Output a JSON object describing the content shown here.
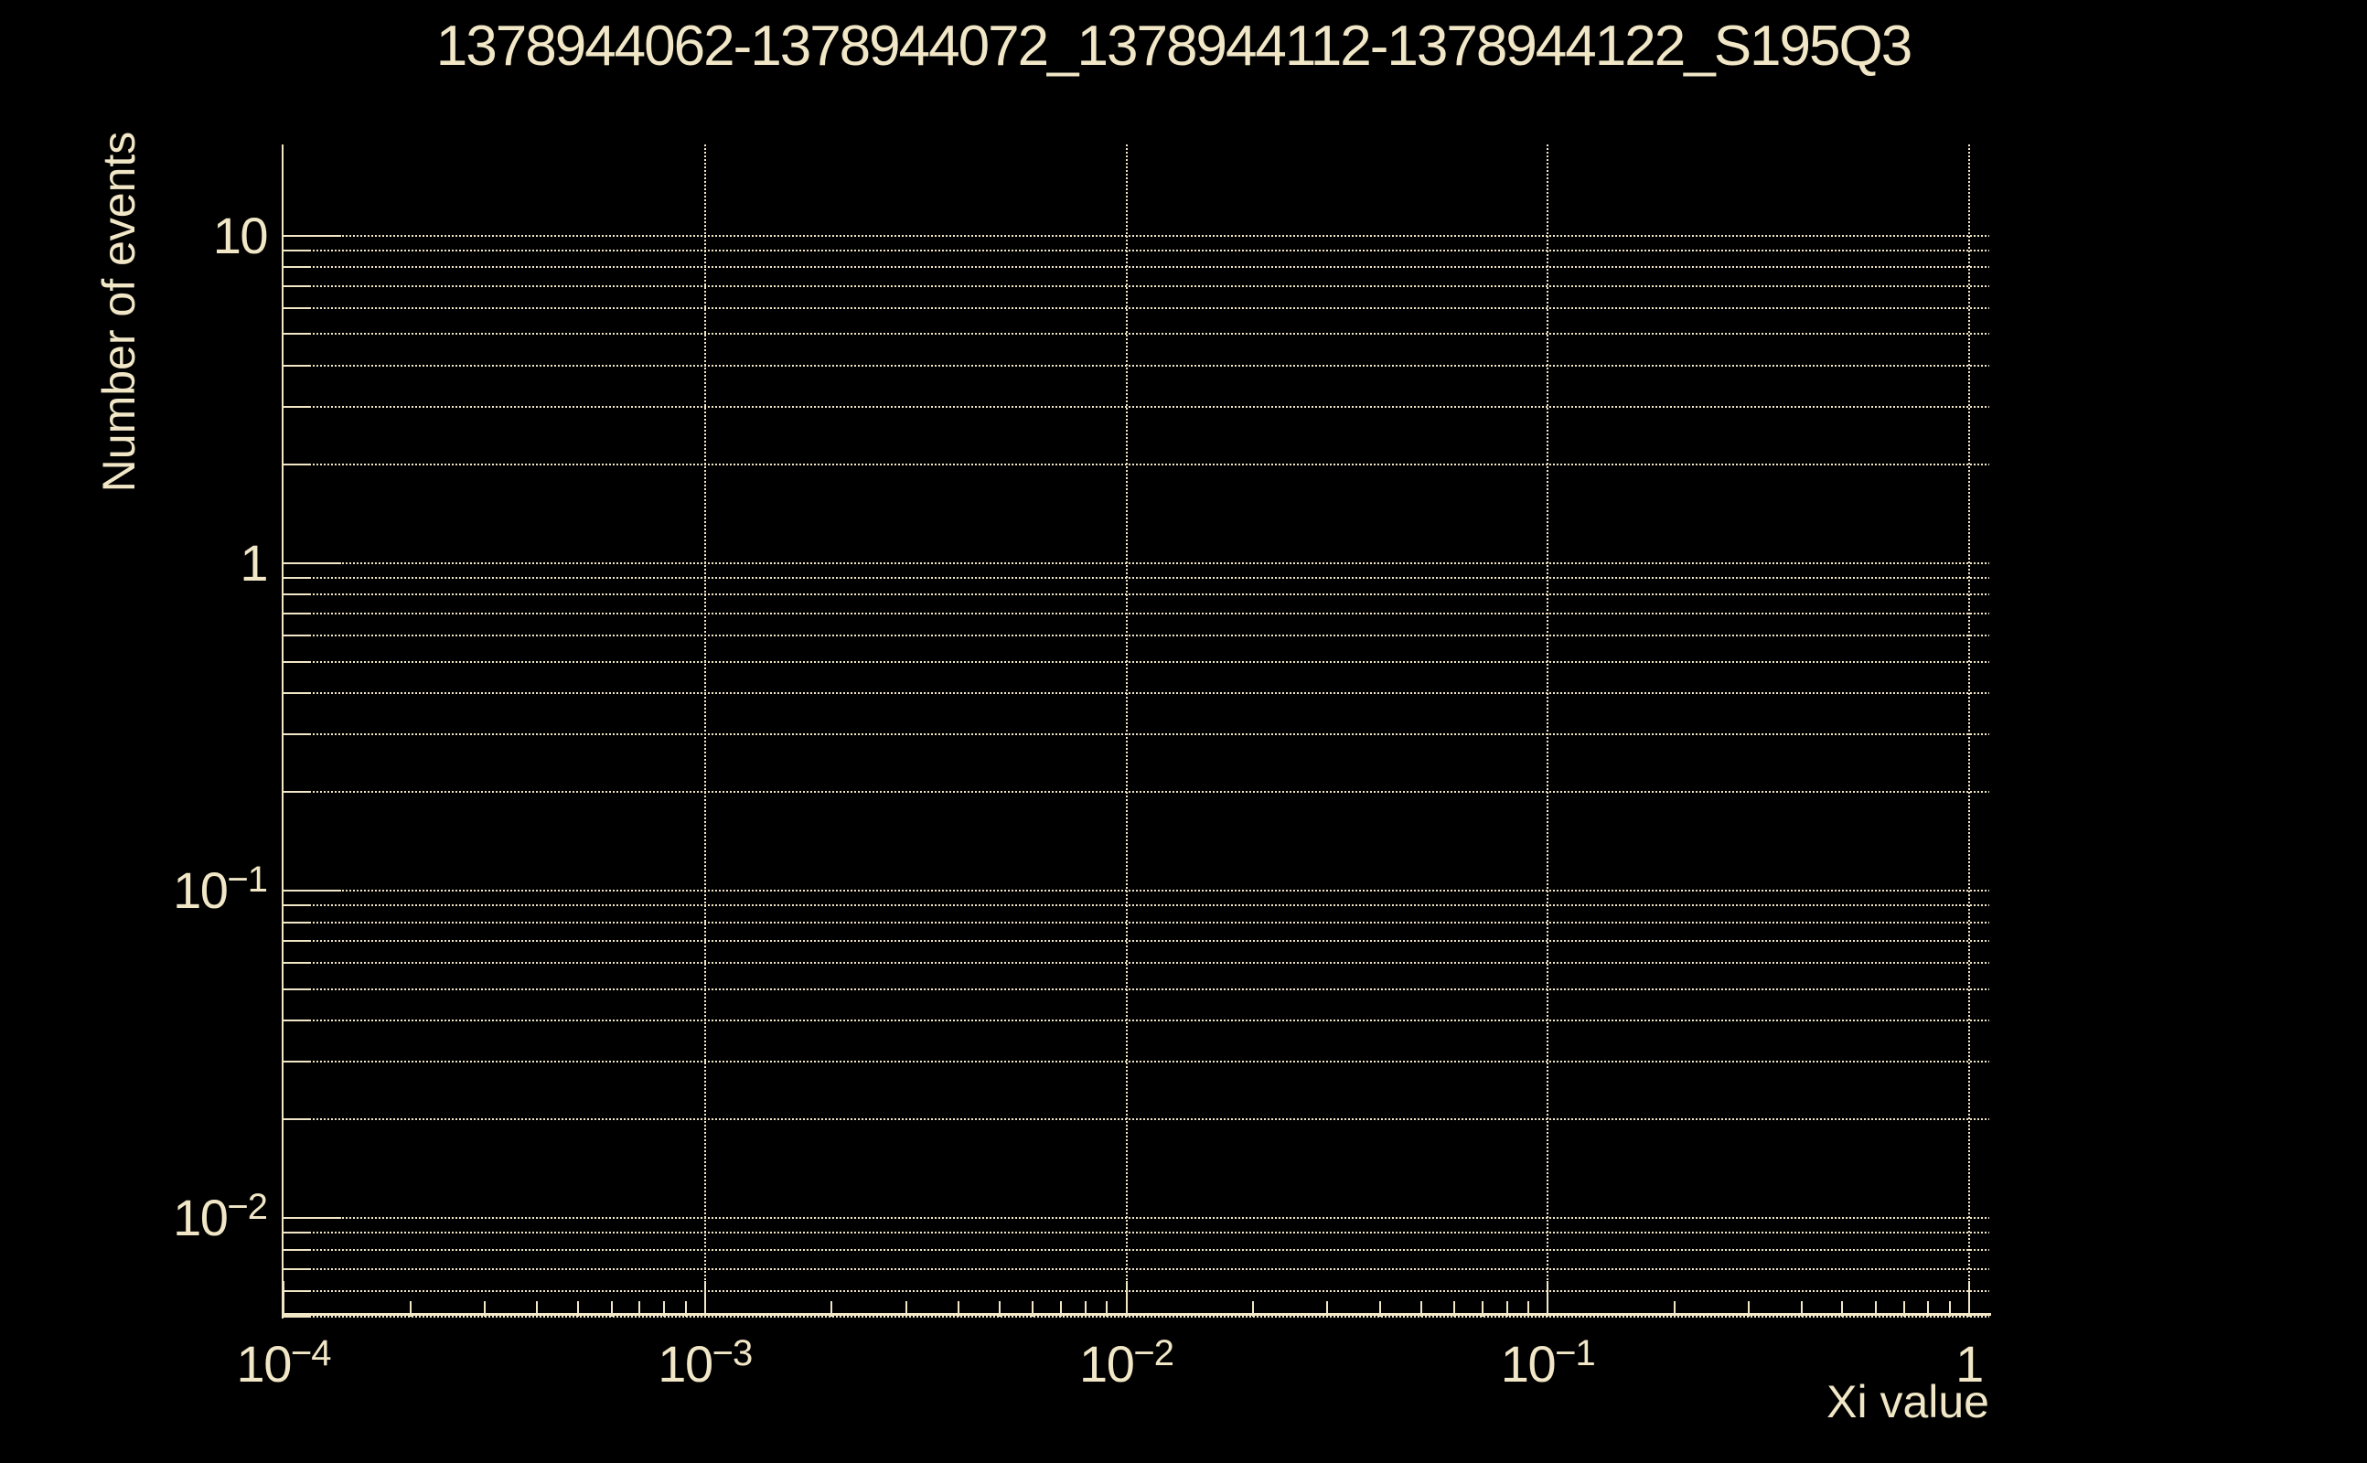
{
  "colors": {
    "background": "#000000",
    "foreground": "#f1e7c7",
    "grid": "#f1e7c7"
  },
  "chart_data": {
    "type": "bar",
    "title": "1378944062-1378944072_1378944112-1378944122_S195Q3",
    "xlabel": "Xi value",
    "ylabel": "Number of events",
    "xscale": "log",
    "yscale": "log",
    "xlim": [
      0.0001,
      1.12
    ],
    "ylim": [
      0.005,
      19
    ],
    "x_major_ticks": [
      0.0001,
      0.001,
      0.01,
      0.1,
      1
    ],
    "x_tick_labels": [
      {
        "base": "10",
        "exp": "−4"
      },
      {
        "base": "10",
        "exp": "−3"
      },
      {
        "base": "10",
        "exp": "−2"
      },
      {
        "base": "10",
        "exp": "−1"
      },
      {
        "base": "1",
        "exp": ""
      }
    ],
    "y_major_ticks": [
      10,
      1,
      0.1,
      0.01
    ],
    "y_tick_labels": [
      {
        "base": "10",
        "exp": ""
      },
      {
        "base": "1",
        "exp": ""
      },
      {
        "base": "10",
        "exp": "−1"
      },
      {
        "base": "10",
        "exp": "−2"
      }
    ],
    "minor_tick_mantissas": [
      2,
      3,
      4,
      5,
      6,
      7,
      8,
      9
    ],
    "grid": {
      "style": "dotted",
      "vertical_lines_at": "x major ticks (decades)",
      "horizontal_lines_at": "y major and minor ticks"
    },
    "legend": null,
    "series": []
  }
}
